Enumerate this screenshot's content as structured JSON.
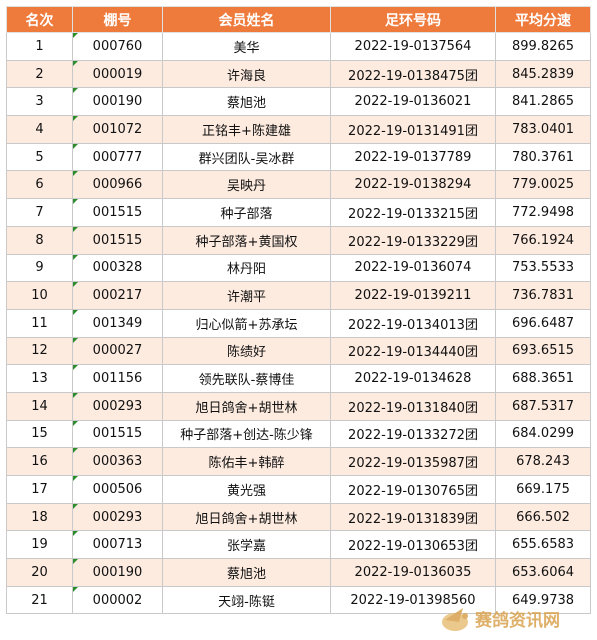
{
  "table": {
    "headers": [
      "名次",
      "棚号",
      "会员姓名",
      "足环号码",
      "平均分速"
    ],
    "rows": [
      [
        "1",
        "000760",
        "美华",
        "2022-19-0137564",
        "899.8265"
      ],
      [
        "2",
        "000019",
        "许海良",
        "2022-19-0138475团",
        "845.2839"
      ],
      [
        "3",
        "000190",
        "蔡旭池",
        "2022-19-0136021",
        "841.2865"
      ],
      [
        "4",
        "001072",
        "正铭丰+陈建雄",
        "2022-19-0131491团",
        "783.0401"
      ],
      [
        "5",
        "000777",
        "群兴团队-吴冰群",
        "2022-19-0137789",
        "780.3761"
      ],
      [
        "6",
        "000966",
        "吴映丹",
        "2022-19-0138294",
        "779.0025"
      ],
      [
        "7",
        "001515",
        "种子部落",
        "2022-19-0133215团",
        "772.9498"
      ],
      [
        "8",
        "001515",
        "种子部落+黄国权",
        "2022-19-0133229团",
        "766.1924"
      ],
      [
        "9",
        "000328",
        "林丹阳",
        "2022-19-0136074",
        "753.5533"
      ],
      [
        "10",
        "000217",
        "许潮平",
        "2022-19-0139211",
        "736.7831"
      ],
      [
        "11",
        "001349",
        "归心似箭+苏承坛",
        "2022-19-0134013团",
        "696.6487"
      ],
      [
        "12",
        "000027",
        "陈绩好",
        "2022-19-0134440团",
        "693.6515"
      ],
      [
        "13",
        "001156",
        "领先联队-蔡博佳",
        "2022-19-0134628",
        "688.3651"
      ],
      [
        "14",
        "000293",
        "旭日鸽舍+胡世林",
        "2022-19-0131840团",
        "687.5317"
      ],
      [
        "15",
        "001515",
        "种子部落+创达-陈少锋",
        "2022-19-0133272团",
        "684.0299"
      ],
      [
        "16",
        "000363",
        "陈佑丰+韩醉",
        "2022-19-0135987团",
        "678.243"
      ],
      [
        "17",
        "000506",
        "黄光强",
        "2022-19-0130765团",
        "669.175"
      ],
      [
        "18",
        "000293",
        "旭日鸽舍+胡世林",
        "2022-19-0131839团",
        "666.502"
      ],
      [
        "19",
        "000713",
        "张学嘉",
        "2022-19-0130653团",
        "655.6583"
      ],
      [
        "20",
        "000190",
        "蔡旭池",
        "2022-19-0136035",
        "653.6064"
      ],
      [
        "21",
        "000002",
        "天翊-陈铤",
        "2022-19-01398560",
        "649.9738"
      ]
    ]
  },
  "watermark": {
    "text": "赛鸽资讯网"
  },
  "colors": {
    "header": "#ee7a3c",
    "stripe": "#fdebe0",
    "cell_mark": "#2e8b2e"
  }
}
